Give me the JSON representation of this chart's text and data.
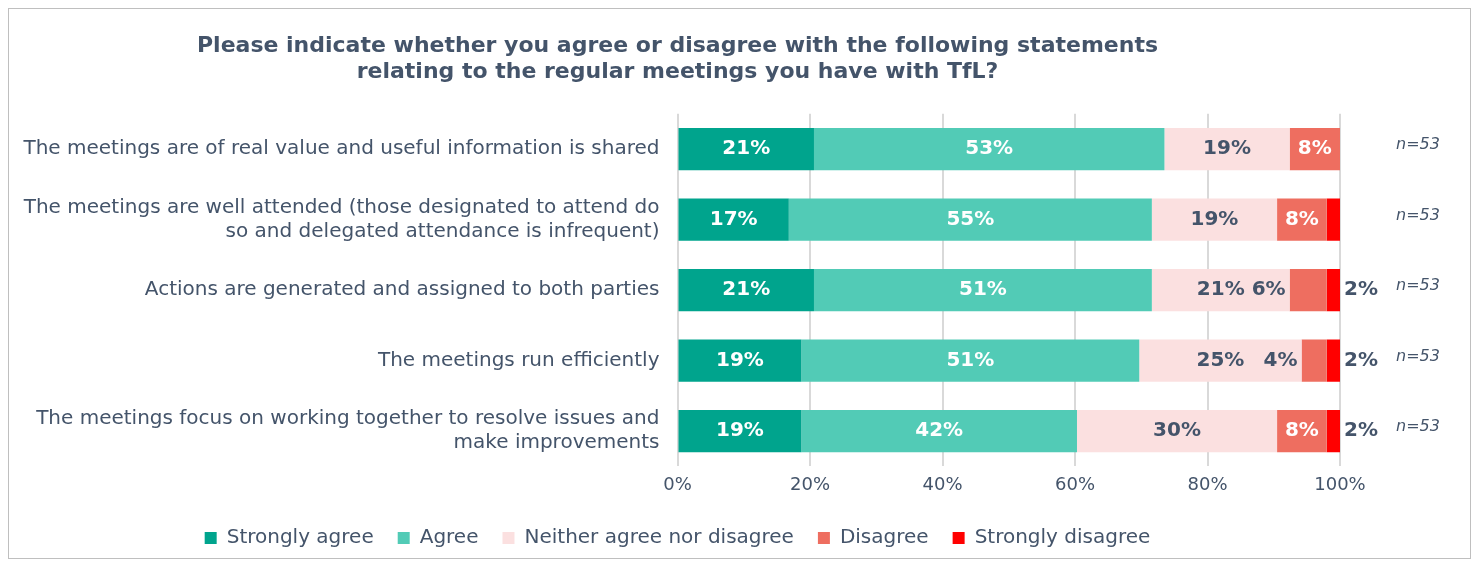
{
  "chart_data": {
    "type": "bar",
    "orientation": "horizontal",
    "stacked": true,
    "title": "Please indicate whether you agree or disagree with the following statements relating to the regular meetings you have with TfL?",
    "categories": [
      "The meetings are of real value and useful information is shared",
      "The meetings are well attended (those designated to attend do so and delegated attendance is infrequent)",
      "Actions are generated and assigned to both parties",
      "The meetings run efficiently",
      "The meetings focus on working together to resolve issues and make improvements"
    ],
    "series": [
      {
        "name": "Strongly agree",
        "color": "#00a48d",
        "values": [
          20.6,
          16.8,
          20.6,
          18.7,
          18.7
        ],
        "value_labels": [
          "21%",
          "17%",
          "21%",
          "19%",
          "19%"
        ]
      },
      {
        "name": "Agree",
        "color": "#52cbb6",
        "values": [
          52.9,
          54.8,
          51.0,
          51.0,
          41.6
        ],
        "value_labels": [
          "53%",
          "55%",
          "51%",
          "51%",
          "42%"
        ]
      },
      {
        "name": "Neither agree nor disagree",
        "color": "#fbe0e0",
        "values": [
          18.9,
          18.9,
          20.8,
          24.5,
          30.2
        ],
        "value_labels": [
          "19%",
          "19%",
          "21%",
          "25%",
          "30%"
        ]
      },
      {
        "name": "Disagree",
        "color": "#ee6e60",
        "values": [
          7.6,
          7.5,
          5.6,
          3.8,
          7.5
        ],
        "value_labels": [
          "8%",
          "8%",
          "6%",
          "4%",
          "8%"
        ]
      },
      {
        "name": "Strongly disagree",
        "color": "#ff0000",
        "values": [
          null,
          2.0,
          2.0,
          2.0,
          2.0
        ],
        "value_labels": [
          null,
          null,
          "2%",
          "2%",
          "2%"
        ]
      }
    ],
    "xlim": [
      0,
      100
    ],
    "xticks": [
      {
        "value": 0,
        "label": "0%"
      },
      {
        "value": 20,
        "label": "20%"
      },
      {
        "value": 40,
        "label": "40%"
      },
      {
        "value": 60,
        "label": "60%"
      },
      {
        "value": 80,
        "label": "80%"
      },
      {
        "value": 100,
        "label": "100%"
      }
    ],
    "grid": "x",
    "legend": "bottom",
    "annotations": [
      "n=53",
      "n=53",
      "n=53",
      "n=53",
      "n=53"
    ]
  }
}
